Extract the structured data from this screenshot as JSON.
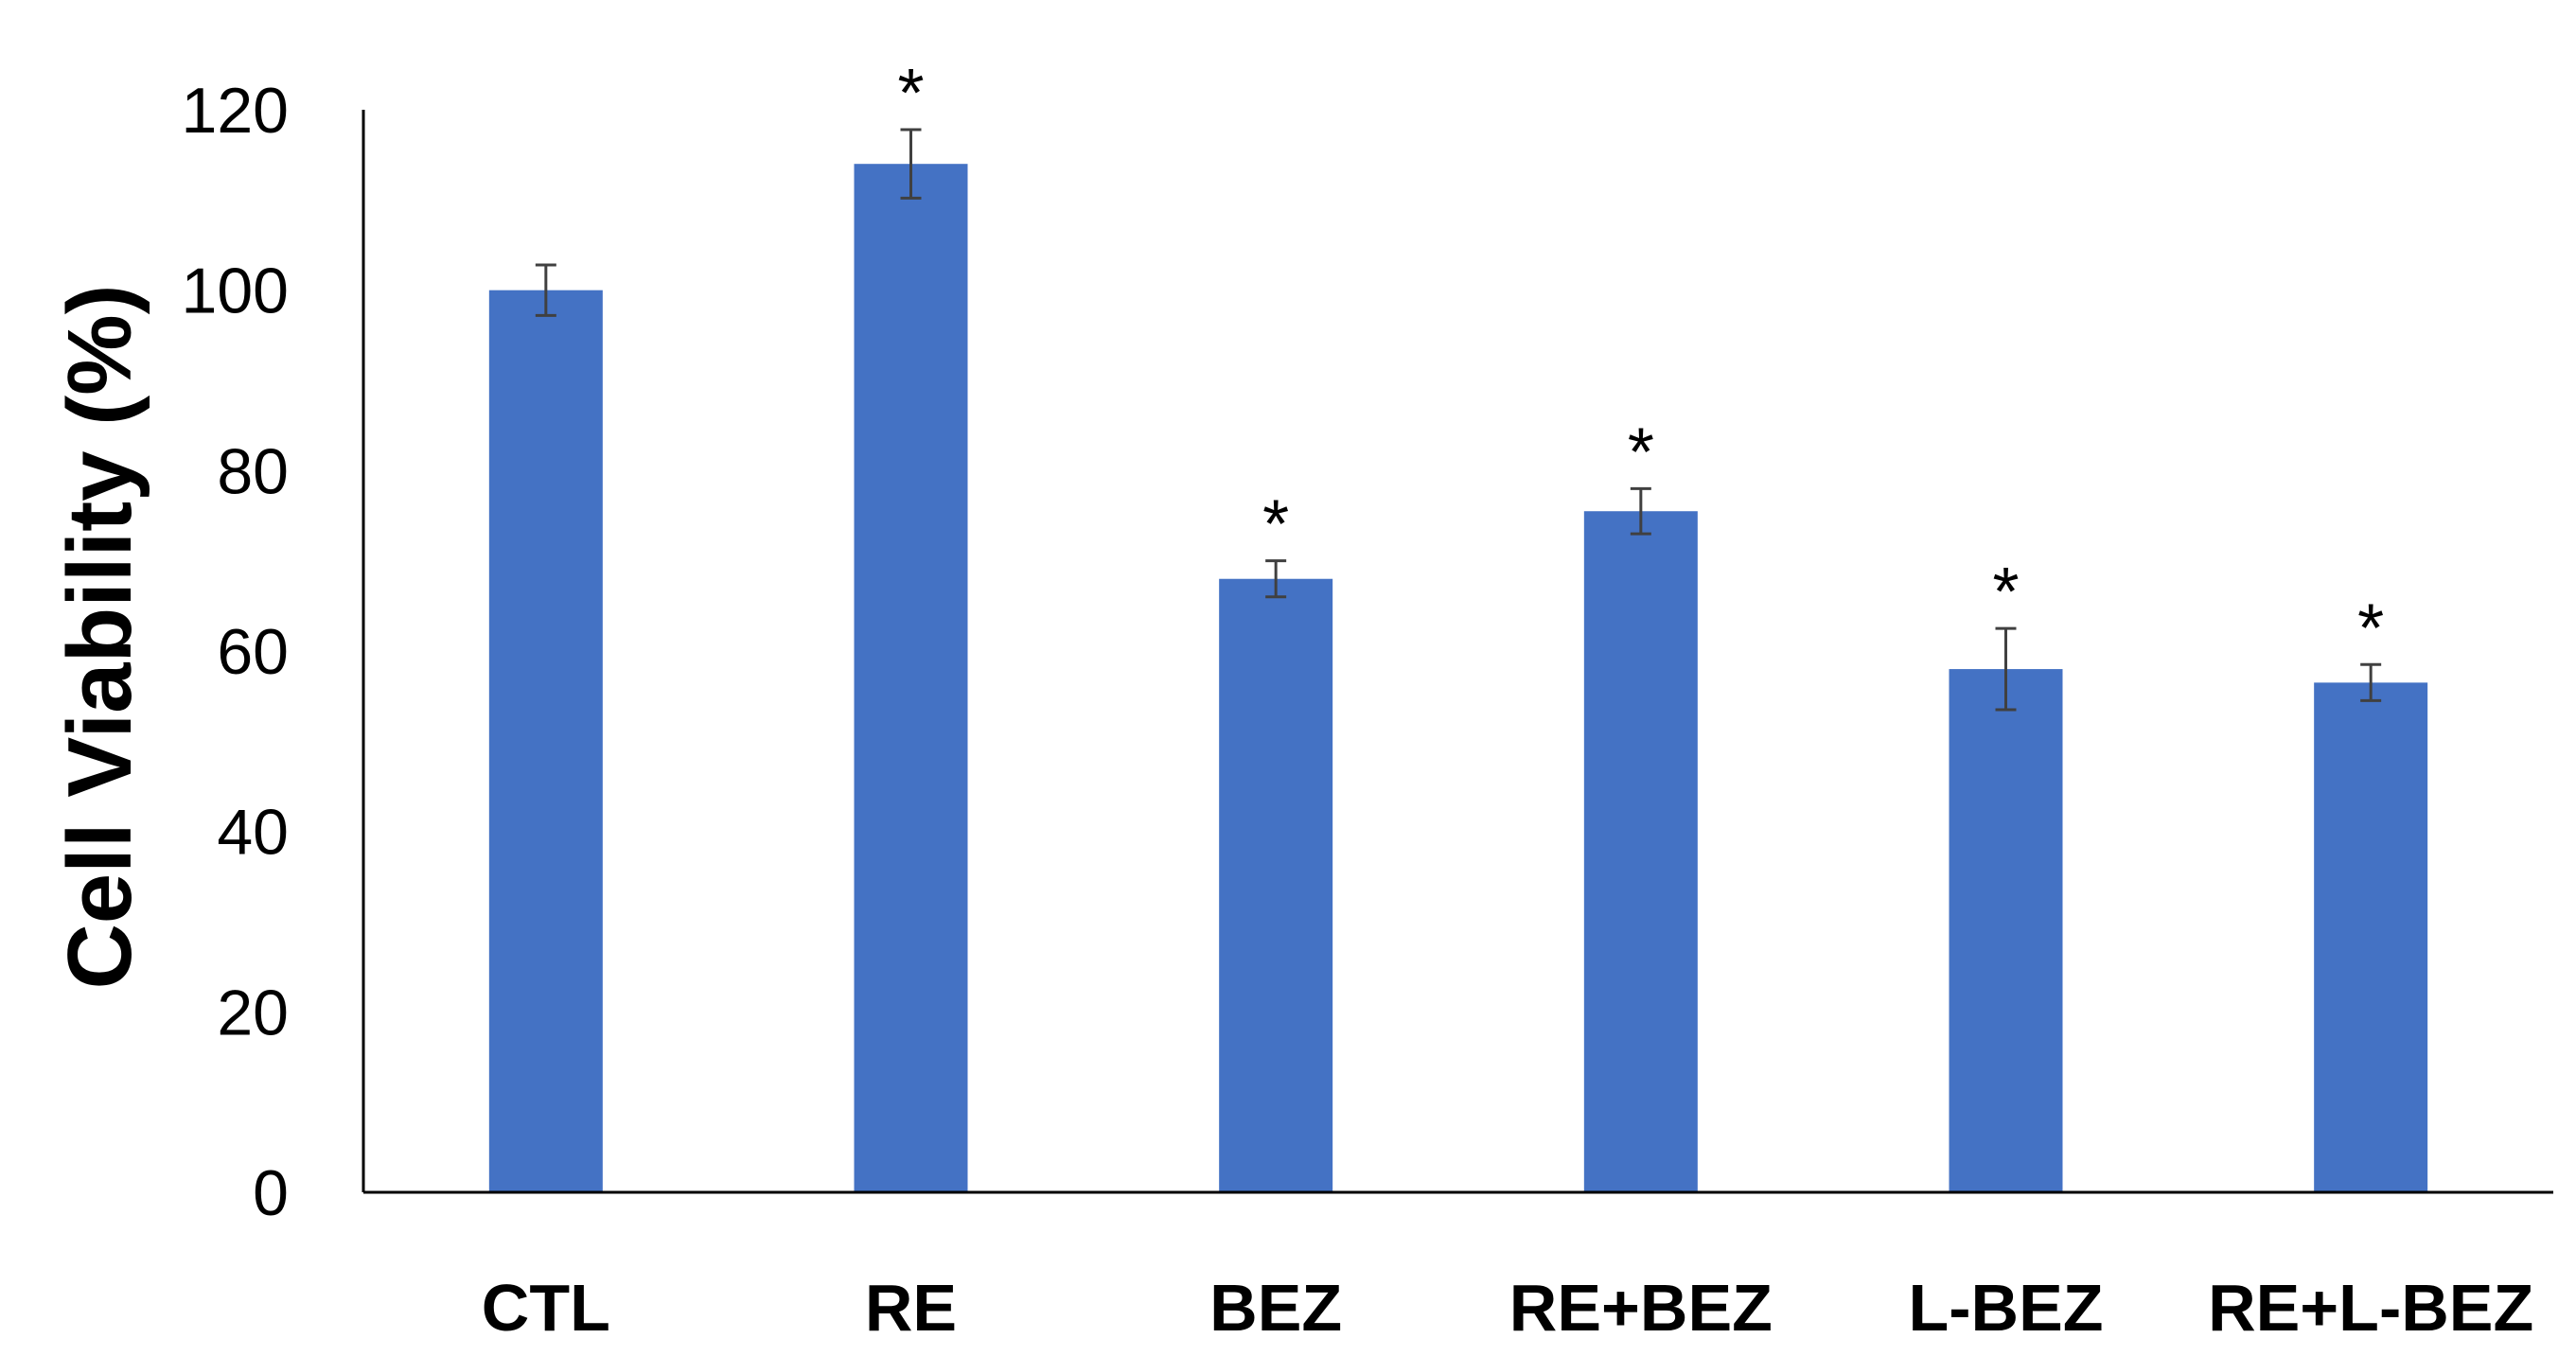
{
  "chart_data": {
    "type": "bar",
    "title": "",
    "xlabel": "",
    "ylabel": "Cell Viability (%)",
    "ylim": [
      0,
      120
    ],
    "yticks": [
      0,
      20,
      40,
      60,
      80,
      100,
      120
    ],
    "grid": false,
    "categories": [
      "CTL",
      "RE",
      "BEZ",
      "RE+BEZ",
      "L-BEZ",
      "RE+L-BEZ"
    ],
    "values": [
      100,
      114,
      68,
      75.5,
      58,
      56.5
    ],
    "errors": [
      2.8,
      3.8,
      2.0,
      2.5,
      4.5,
      2.0
    ],
    "significance": [
      "",
      "*",
      "*",
      "*",
      "*",
      "*"
    ],
    "colors": {
      "bar": "#4472C4",
      "axis": "#000000",
      "error_bar": "#404040"
    }
  }
}
